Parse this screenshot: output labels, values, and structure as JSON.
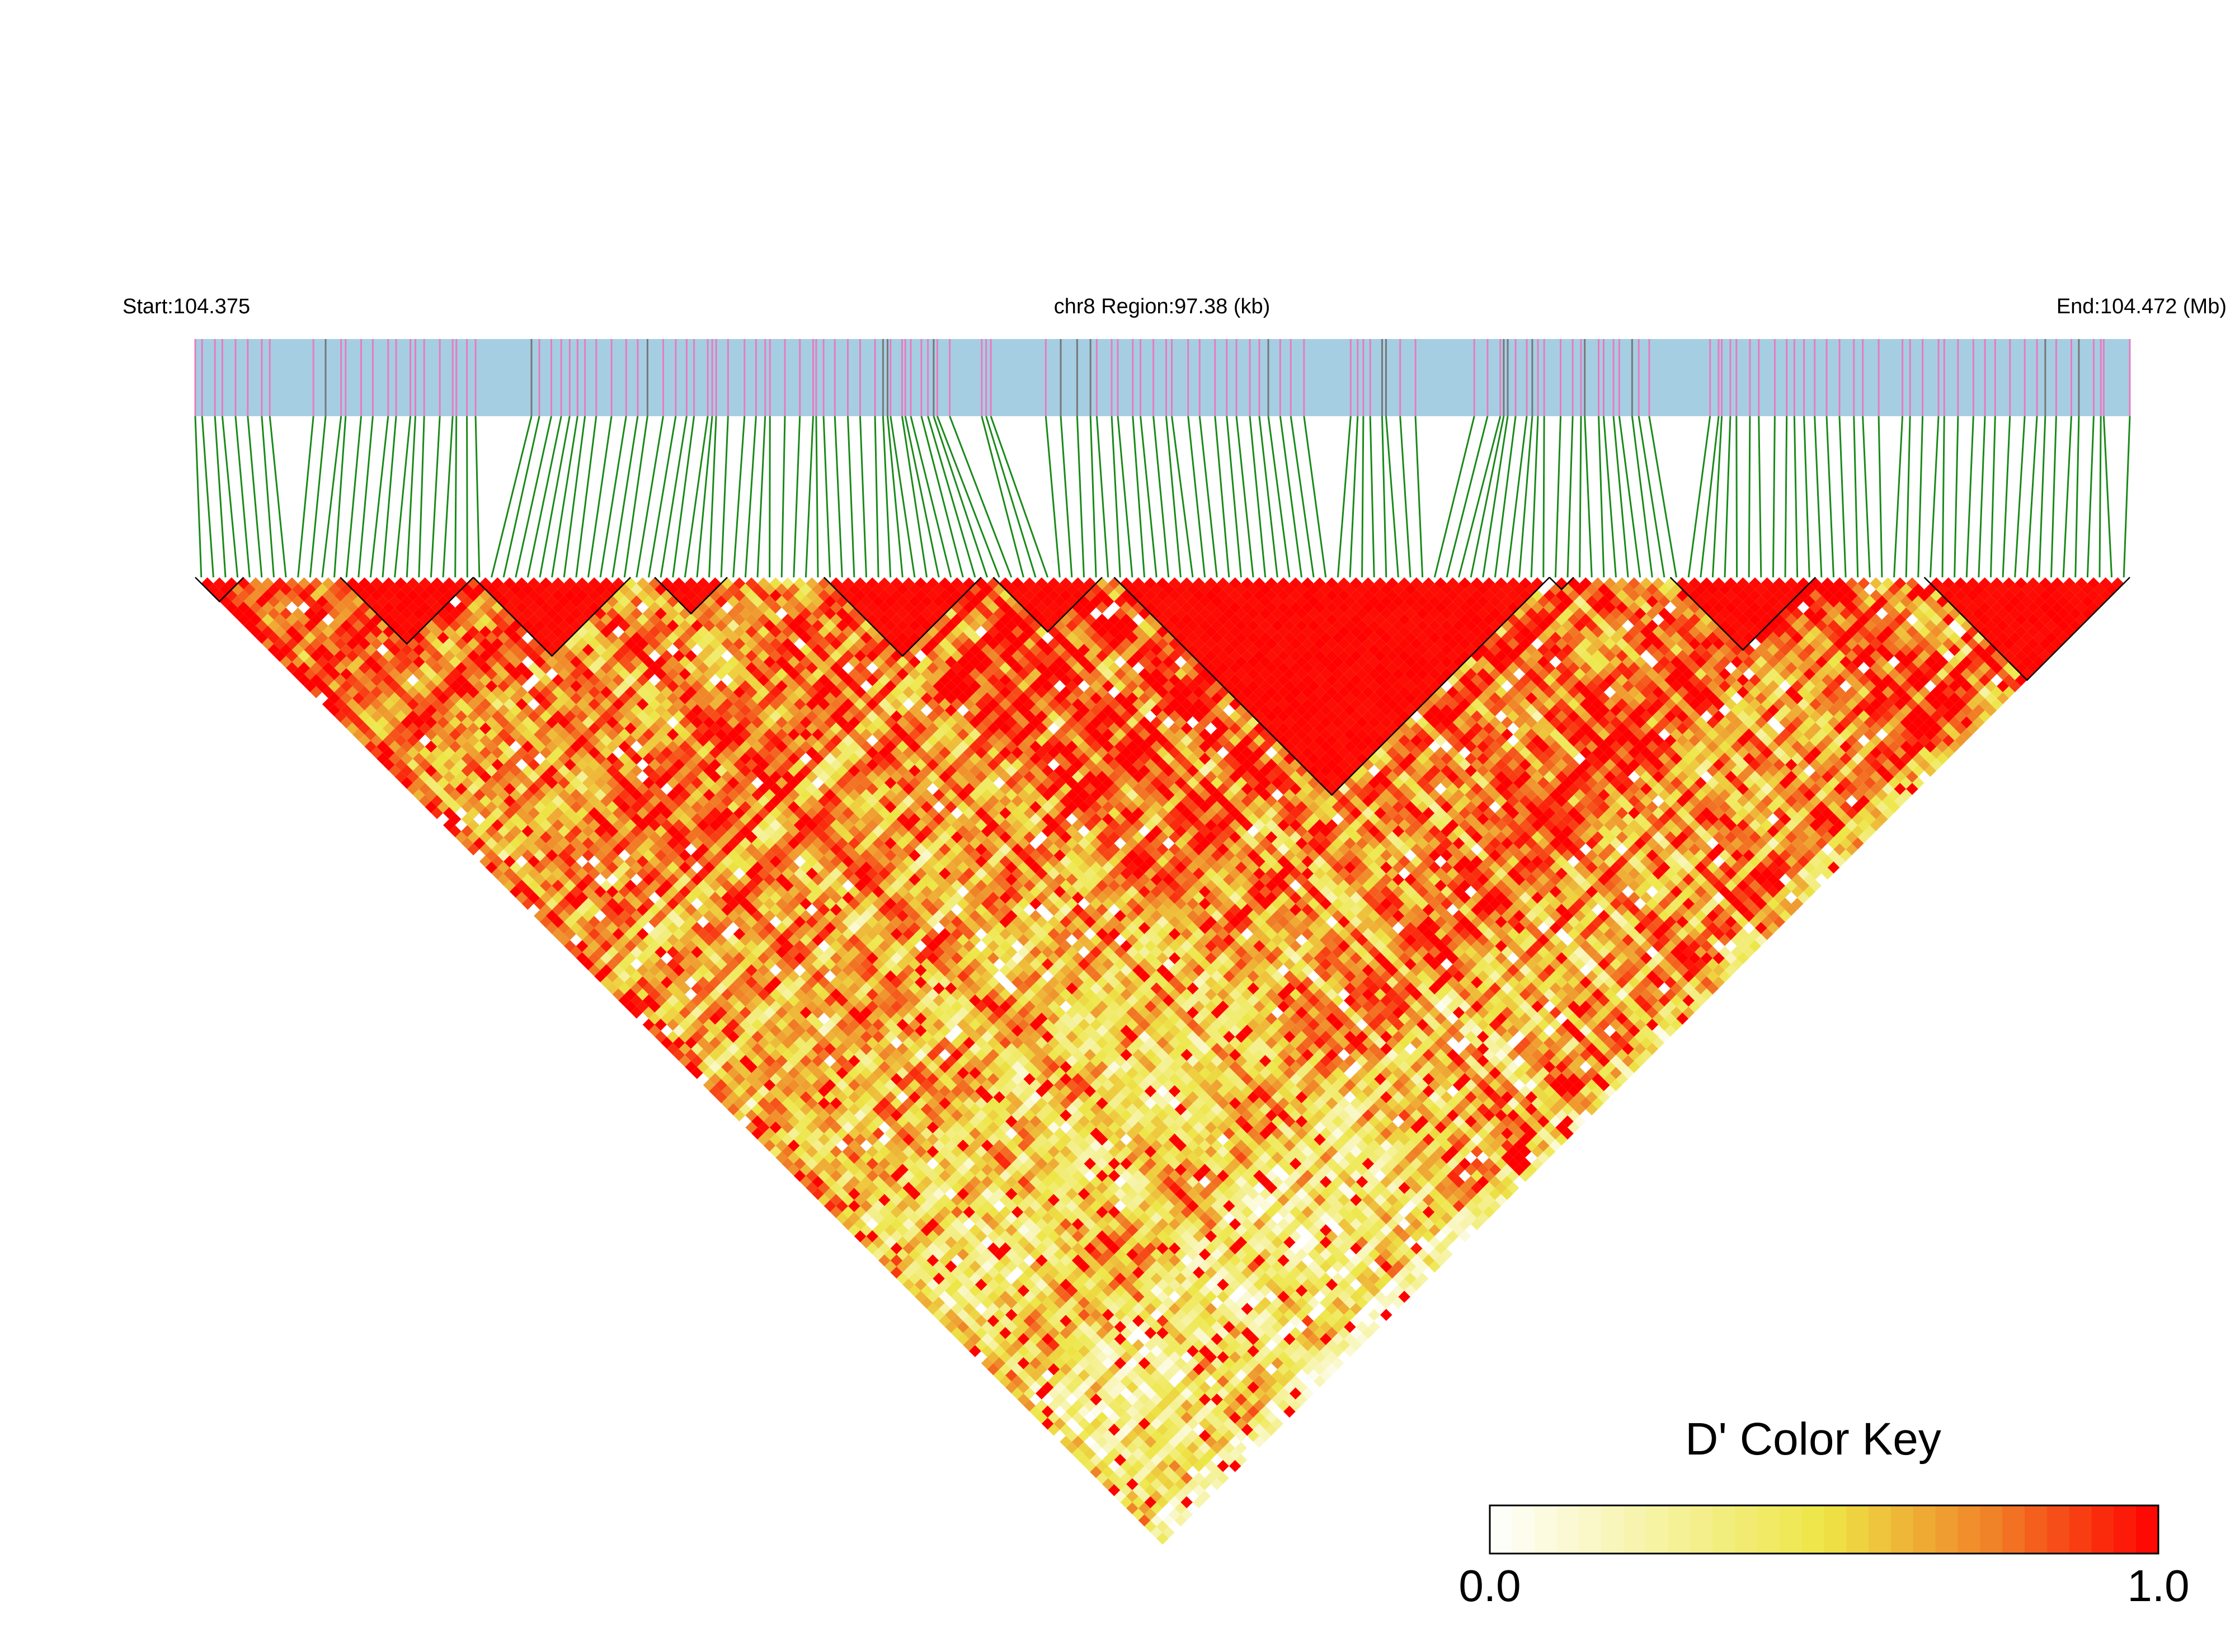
{
  "chart_data": {
    "type": "ld-heatmap",
    "start_label": "Start:104.375",
    "region_label": "chr8 Region:97.38 (kb)",
    "end_label": "End:104.472 (Mb)",
    "color_key": {
      "title": "D' Color Key",
      "lim": [
        0,
        1
      ],
      "ticks": [
        {
          "value": 0,
          "label": "0.0"
        },
        {
          "value": 1,
          "label": "1.0"
        }
      ]
    }
  }
}
